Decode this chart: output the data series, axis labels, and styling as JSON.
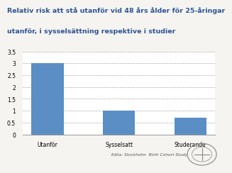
{
  "title_line1": "Relativ risk att stå utanför vid 48 års ålder för 25-åringar",
  "title_line2": "utanför, i sysselsättning respektive i studier",
  "categories": [
    "Utanför",
    "Sysselsatt",
    "Studerande"
  ],
  "values": [
    3.0,
    1.0,
    0.7
  ],
  "bar_color": "#5b8ec4",
  "ylim": [
    0,
    3.5
  ],
  "yticks": [
    0,
    0.5,
    1,
    1.5,
    2,
    2.5,
    3,
    3.5
  ],
  "title_color": "#2f5496",
  "title_fontsize": 6.8,
  "tick_fontsize": 5.5,
  "xlabel_fontsize": 5.5,
  "source_text": "Källa: Stockholm  Birth Cohort Study",
  "background_color": "#f5f4f0",
  "plot_bg_color": "#ffffff",
  "grid_color": "#aaaaaa",
  "bar_width": 0.45
}
